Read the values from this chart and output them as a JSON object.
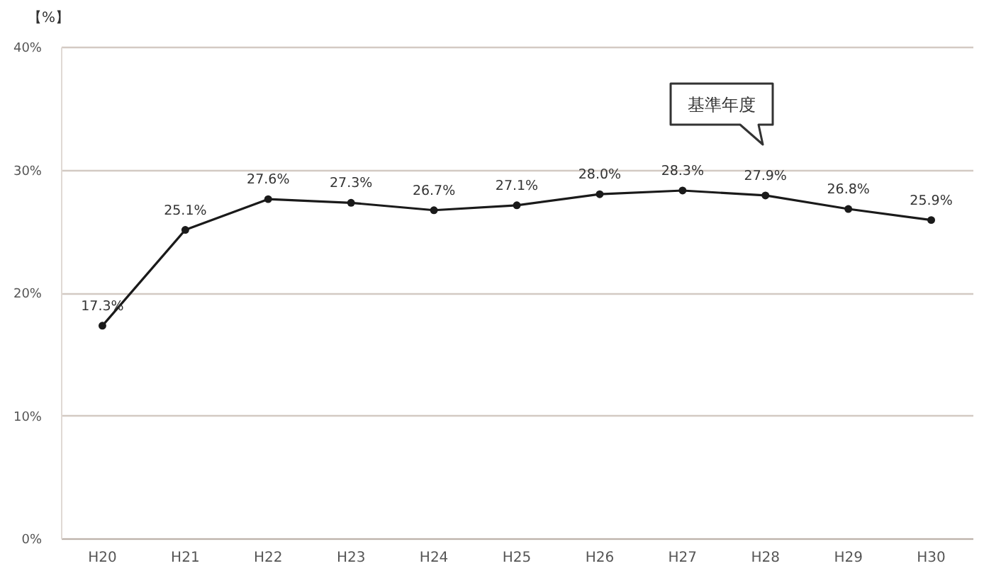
{
  "chart_data": {
    "type": "line",
    "ylabel": "【%】",
    "categories": [
      "H20",
      "H21",
      "H22",
      "H23",
      "H24",
      "H25",
      "H26",
      "H27",
      "H28",
      "H29",
      "H30"
    ],
    "values": [
      17.3,
      25.1,
      27.6,
      27.3,
      26.7,
      27.1,
      28.0,
      28.3,
      27.9,
      26.8,
      25.9
    ],
    "value_labels": [
      "17.3%",
      "25.1%",
      "27.6%",
      "27.3%",
      "26.7%",
      "27.1%",
      "28.0%",
      "28.3%",
      "27.9%",
      "26.8%",
      "25.9%"
    ],
    "color": "#1a1a1a",
    "marker": "circle",
    "ylim": [
      0,
      40
    ],
    "yticks": [
      {
        "value": 0,
        "label": "0%"
      },
      {
        "value": 10,
        "label": "10%"
      },
      {
        "value": 20,
        "label": "20%"
      },
      {
        "value": 30,
        "label": "30%"
      },
      {
        "value": 40,
        "label": "40%"
      }
    ],
    "grid": "y",
    "annotations": [
      "基準年度"
    ]
  }
}
